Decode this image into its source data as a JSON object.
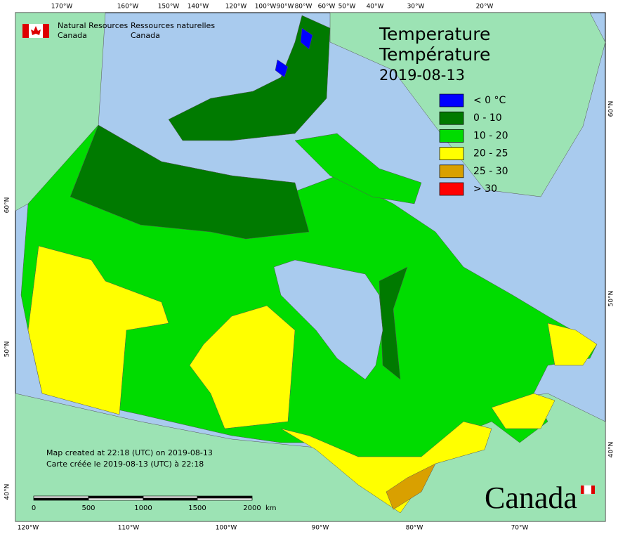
{
  "agency": {
    "english": [
      "Natural Resources",
      "Canada"
    ],
    "french": [
      "Ressources naturelles",
      "Canada"
    ]
  },
  "title": [
    "Temperature",
    "Température"
  ],
  "date": "2019-08-13",
  "legend": [
    {
      "label": "< 0 °C",
      "color": "#0000ff"
    },
    {
      "label": "0 - 10",
      "color": "#007a00"
    },
    {
      "label": "10 - 20",
      "color": "#00dc00"
    },
    {
      "label": "20 - 25",
      "color": "#ffff00"
    },
    {
      "label": "25 - 30",
      "color": "#d9a000"
    },
    {
      "label": "> 30",
      "color": "#ff0000"
    }
  ],
  "notes": [
    "Map created at 22:18 (UTC) on 2019-08-13",
    "Carte créée le 2019-08-13 (UTC) à 22:18"
  ],
  "scale_bar": {
    "labels": [
      "0",
      "500",
      "1000",
      "1500",
      "2000"
    ],
    "unit": "km"
  },
  "graticule": {
    "top": [
      "170°W",
      "160°W",
      "150°W",
      "140°W",
      "120°W",
      "100°W",
      "90°W",
      "80°W",
      "60°W",
      "50°W",
      "40°W",
      "30°W",
      "20°W"
    ],
    "bottom": [
      "120°W",
      "110°W",
      "100°W",
      "90°W",
      "80°W",
      "70°W"
    ],
    "left": [
      "60°N",
      "50°N",
      "40°N"
    ],
    "right": [
      "60°N",
      "50°N",
      "40°N"
    ]
  },
  "wordmark": "Canada"
}
